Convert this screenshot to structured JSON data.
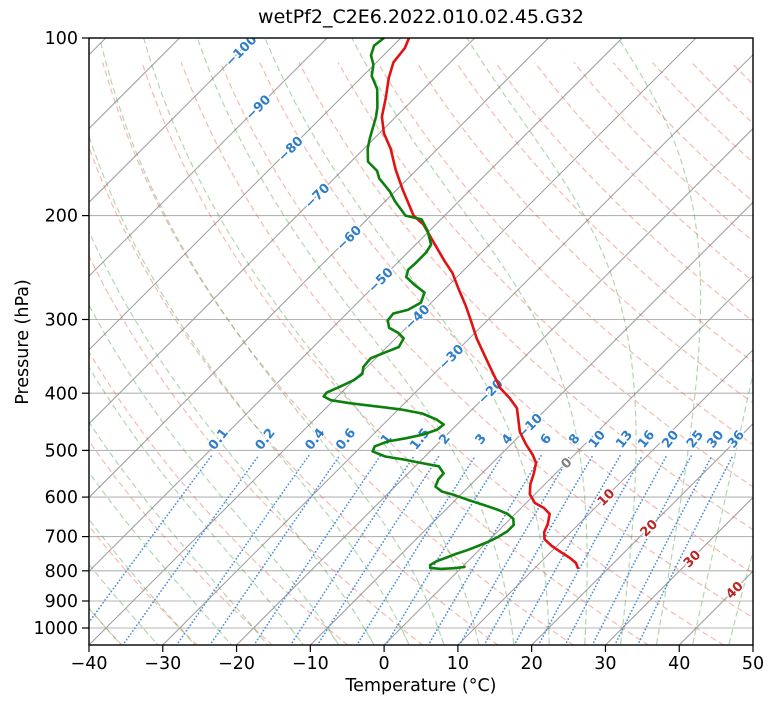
{
  "title": "wetPf2_C2E6.2022.010.02.45.G32",
  "axes": {
    "x_label": "Temperature (°C)",
    "y_label": "Pressure (hPa)",
    "x_ticks": [
      -40,
      -30,
      -20,
      -10,
      0,
      10,
      20,
      30,
      40,
      50
    ],
    "y_ticks": [
      100,
      200,
      300,
      400,
      500,
      600,
      700,
      800,
      900,
      1000
    ]
  },
  "chart_data": {
    "type": "line",
    "chart_kind": "skewT-logP-sounding",
    "title": "wetPf2_C2E6.2022.010.02.45.G32",
    "xlabel": "Temperature (°C)",
    "ylabel": "Pressure (hPa)",
    "xlim_c": [
      -40,
      50
    ],
    "plim_hpa": [
      1070,
      100
    ],
    "skew_deg": 45,
    "grid": "horizontal gray lines at labeled pressure levels",
    "series": [
      {
        "name": "temperature",
        "color": "#e01212",
        "units": {
          "p": "hPa",
          "t": "degC"
        },
        "points": [
          [
            100,
            -78.9
          ],
          [
            104,
            -78.1
          ],
          [
            110,
            -77.7
          ],
          [
            117,
            -76.2
          ],
          [
            126,
            -74.0
          ],
          [
            136,
            -71.9
          ],
          [
            145,
            -69.4
          ],
          [
            154,
            -66.4
          ],
          [
            167,
            -62.9
          ],
          [
            180,
            -59.4
          ],
          [
            200,
            -54.2
          ],
          [
            207,
            -51.7
          ],
          [
            221,
            -48.1
          ],
          [
            239,
            -43.8
          ],
          [
            250,
            -41.2
          ],
          [
            265,
            -38.4
          ],
          [
            285,
            -34.8
          ],
          [
            302,
            -32.1
          ],
          [
            323,
            -29.0
          ],
          [
            344,
            -25.8
          ],
          [
            367,
            -22.5
          ],
          [
            392,
            -19.1
          ],
          [
            408,
            -16.4
          ],
          [
            424,
            -14.1
          ],
          [
            444,
            -12.3
          ],
          [
            465,
            -10.5
          ],
          [
            488,
            -8.0
          ],
          [
            509,
            -5.6
          ],
          [
            525,
            -4.1
          ],
          [
            546,
            -3.0
          ],
          [
            570,
            -2.0
          ],
          [
            593,
            -0.7
          ],
          [
            614,
            1.2
          ],
          [
            626,
            3.1
          ],
          [
            641,
            4.7
          ],
          [
            667,
            5.8
          ],
          [
            688,
            6.4
          ],
          [
            707,
            7.4
          ],
          [
            726,
            9.3
          ],
          [
            744,
            11.4
          ],
          [
            761,
            13.4
          ],
          [
            776,
            14.9
          ],
          [
            791,
            15.8
          ]
        ]
      },
      {
        "name": "dewpoint",
        "color": "#0c800c",
        "units": {
          "p": "hPa",
          "t": "degC"
        },
        "points": [
          [
            100,
            -82.3
          ],
          [
            103,
            -82.6
          ],
          [
            107,
            -81.7
          ],
          [
            111,
            -80.1
          ],
          [
            116,
            -78.8
          ],
          [
            122,
            -76.3
          ],
          [
            131,
            -73.8
          ],
          [
            136,
            -72.7
          ],
          [
            148,
            -70.6
          ],
          [
            154,
            -69.5
          ],
          [
            162,
            -67.7
          ],
          [
            168,
            -65.2
          ],
          [
            173,
            -63.9
          ],
          [
            182,
            -60.7
          ],
          [
            189,
            -58.7
          ],
          [
            200,
            -55.3
          ],
          [
            203,
            -52.6
          ],
          [
            212,
            -50.3
          ],
          [
            224,
            -47.9
          ],
          [
            231,
            -47.5
          ],
          [
            241,
            -47.5
          ],
          [
            247,
            -47.6
          ],
          [
            254,
            -46.9
          ],
          [
            262,
            -44.7
          ],
          [
            270,
            -42.3
          ],
          [
            281,
            -41.4
          ],
          [
            289,
            -42.2
          ],
          [
            293,
            -43.7
          ],
          [
            301,
            -43.5
          ],
          [
            310,
            -42.3
          ],
          [
            316,
            -40.4
          ],
          [
            323,
            -38.9
          ],
          [
            334,
            -38.4
          ],
          [
            341,
            -39.5
          ],
          [
            349,
            -40.7
          ],
          [
            361,
            -40.5
          ],
          [
            371,
            -39.7
          ],
          [
            380,
            -40.0
          ],
          [
            389,
            -40.9
          ],
          [
            399,
            -42.0
          ],
          [
            405,
            -41.9
          ],
          [
            411,
            -40.4
          ],
          [
            416,
            -37.3
          ],
          [
            421,
            -33.5
          ],
          [
            426,
            -29.7
          ],
          [
            433,
            -26.2
          ],
          [
            443,
            -23.5
          ],
          [
            452,
            -21.8
          ],
          [
            461,
            -22.0
          ],
          [
            470,
            -23.2
          ],
          [
            477,
            -25.1
          ],
          [
            483,
            -27.1
          ],
          [
            492,
            -28.2
          ],
          [
            502,
            -27.8
          ],
          [
            512,
            -25.4
          ],
          [
            518,
            -22.5
          ],
          [
            526,
            -19.3
          ],
          [
            532,
            -16.8
          ],
          [
            547,
            -15.2
          ],
          [
            560,
            -15.1
          ],
          [
            576,
            -14.5
          ],
          [
            587,
            -13.0
          ],
          [
            594,
            -11.1
          ],
          [
            606,
            -8.4
          ],
          [
            618,
            -5.6
          ],
          [
            630,
            -3.0
          ],
          [
            641,
            -1.0
          ],
          [
            653,
            0.4
          ],
          [
            669,
            1.3
          ],
          [
            685,
            1.3
          ],
          [
            701,
            0.8
          ],
          [
            715,
            0.1
          ],
          [
            726,
            -0.7
          ],
          [
            738,
            -1.6
          ],
          [
            749,
            -2.6
          ],
          [
            761,
            -3.5
          ],
          [
            770,
            -4.2
          ],
          [
            782,
            -4.6
          ],
          [
            791,
            -4.2
          ],
          [
            794,
            -2.6
          ],
          [
            792,
            -0.9
          ],
          [
            788,
            0.3
          ]
        ]
      }
    ],
    "background_lines": {
      "isotherms": {
        "t_from": -160,
        "t_to": 50,
        "step": 10,
        "color": "#a2a2a2",
        "label_values": [
          -100,
          -90,
          -80,
          -70,
          -60,
          -50,
          -40,
          -30,
          -20,
          -10,
          0,
          10,
          20,
          30,
          40
        ],
        "label_pressures": [
          105,
          131,
          154,
          185,
          218,
          257,
          297,
          347,
          397,
          454,
          525,
          600,
          677,
          763,
          862
        ],
        "label_color_negative": "#2d7dc8",
        "label_color_zero": "#7f7f7f",
        "label_color_positive": "#bf2222"
      },
      "dry_adiabats": {
        "theta_from": -40,
        "theta_to": 200,
        "step": 10,
        "color": "rgba(228,84,62,0.40)"
      },
      "moist_adiabats": {
        "thetaw_from": -40,
        "thetaw_to": 45,
        "step": 5,
        "color": "rgba(62,152,62,0.40)"
      },
      "mixing_ratio_g_kg": {
        "values": [
          0.1,
          0.2,
          0.4,
          0.6,
          1,
          1.5,
          2,
          3,
          4,
          6,
          8,
          10,
          13,
          16,
          20,
          25,
          30,
          36
        ],
        "p_top": 500,
        "label_pressure": 478,
        "line_color": "#4a90d9",
        "label_color": "#2d7dc8"
      }
    }
  }
}
